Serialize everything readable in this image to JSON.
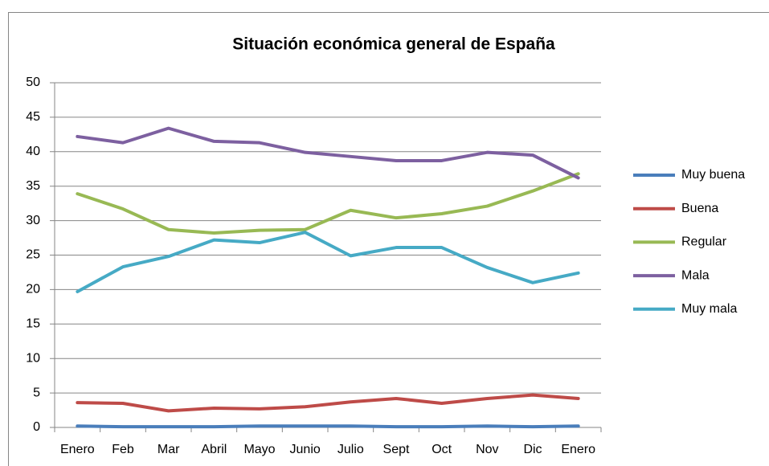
{
  "chart_data": {
    "type": "line",
    "title": "Situación económica general de España",
    "categories": [
      "Enero",
      "Feb",
      "Mar",
      "Abril",
      "Mayo",
      "Junio",
      "Julio",
      "Sept",
      "Oct",
      "Nov",
      "Dic",
      "Enero"
    ],
    "series": [
      {
        "name": "Muy buena",
        "color": "#4a7ebb",
        "values": [
          0.2,
          0.1,
          0.1,
          0.1,
          0.2,
          0.2,
          0.2,
          0.1,
          0.1,
          0.2,
          0.1,
          0.2
        ]
      },
      {
        "name": "Buena",
        "color": "#be4b48",
        "values": [
          3.6,
          3.5,
          2.4,
          2.8,
          2.7,
          3.0,
          3.7,
          4.2,
          3.5,
          4.2,
          4.7,
          4.2
        ]
      },
      {
        "name": "Regular",
        "color": "#98b954",
        "values": [
          33.9,
          31.7,
          28.7,
          28.2,
          28.6,
          28.7,
          31.5,
          30.4,
          31.0,
          32.1,
          34.3,
          36.8
        ]
      },
      {
        "name": "Mala",
        "color": "#7d60a0",
        "values": [
          42.2,
          41.3,
          43.4,
          41.5,
          41.3,
          39.9,
          39.3,
          38.7,
          38.7,
          39.9,
          39.5,
          36.2
        ]
      },
      {
        "name": "Muy mala",
        "color": "#46aac5",
        "values": [
          19.7,
          23.3,
          24.8,
          27.2,
          26.8,
          28.3,
          24.9,
          26.1,
          26.1,
          23.2,
          21.0,
          22.4
        ]
      }
    ],
    "ylim": [
      0,
      50
    ],
    "yticks": [
      0,
      5,
      10,
      15,
      20,
      25,
      30,
      35,
      40,
      45,
      50
    ],
    "grid": true,
    "legend": "right"
  }
}
